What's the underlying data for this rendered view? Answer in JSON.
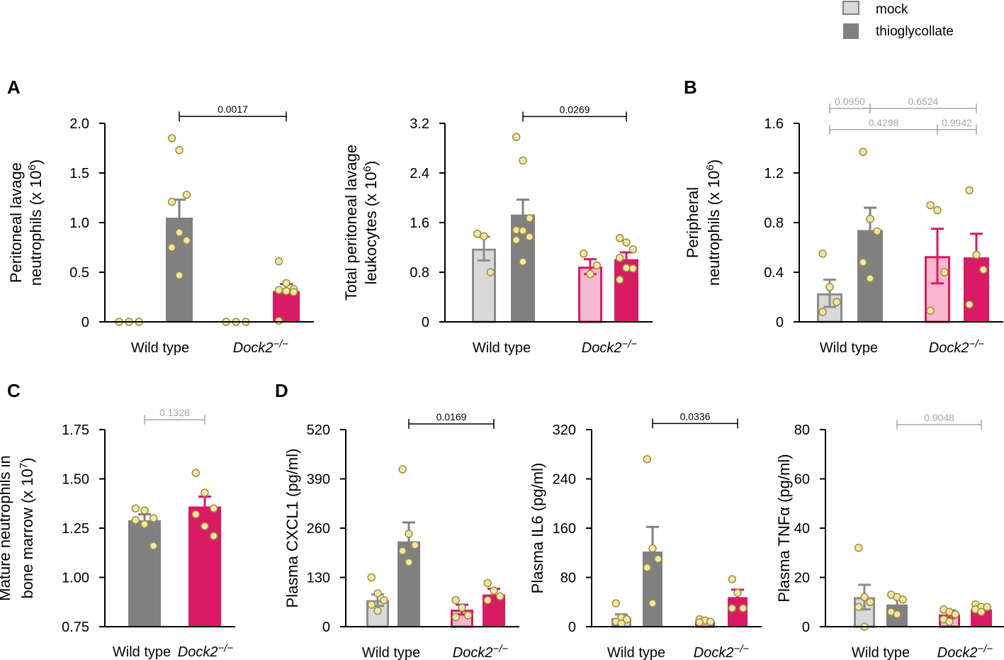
{
  "legend": {
    "mock_label": "mock",
    "thio_label": "thioglycollate"
  },
  "colors": {
    "wt_mock_fill": "#d9d9d9",
    "wt_mock_stroke": "#8c8c8c",
    "wt_thio": "#808080",
    "ko_mock_fill": "#f7b8d0",
    "ko_mock_stroke": "#d81b63",
    "ko_thio": "#d81b63",
    "dot_fill": "#efe7a6",
    "dot_stroke": "#a08c3a",
    "sig_line": "#000000",
    "nonsig_line": "#a6a6a6"
  },
  "chart_data": [
    {
      "id": "A1",
      "panel_letter": "A",
      "type": "bar",
      "ylabel": [
        "Peritoneal lavage",
        "neutrophils (x 10",
        "6",
        ")"
      ],
      "ylim": [
        0,
        2.0
      ],
      "yticks": [
        "0",
        "0.5",
        "1.0",
        "1.5",
        "2.0"
      ],
      "ytick_values": [
        0,
        0.5,
        1.0,
        1.5,
        2.0
      ],
      "groups": [
        {
          "label": "Wild type",
          "italic": false
        },
        {
          "label": "Dock2−/−",
          "italic": true
        }
      ],
      "bars": [
        {
          "series": "wt_mock",
          "group": 0,
          "value": 0,
          "sem": 0,
          "points": [
            0,
            0,
            0
          ]
        },
        {
          "series": "wt_thio",
          "group": 0,
          "value": 1.05,
          "sem": 0.18,
          "points": [
            1.85,
            1.73,
            1.28,
            1.21,
            0.9,
            0.82,
            0.75,
            0.47
          ]
        },
        {
          "series": "ko_mock",
          "group": 1,
          "value": 0,
          "sem": 0,
          "points": [
            0,
            0,
            0
          ]
        },
        {
          "series": "ko_thio",
          "group": 1,
          "value": 0.31,
          "sem": 0.07,
          "points": [
            0.61,
            0.39,
            0.33,
            0.32,
            0.31,
            0.3,
            0.01
          ]
        }
      ],
      "comparisons": [
        {
          "from": 1,
          "to": 3,
          "y": 2.07,
          "label": "0.0017",
          "significant": true
        }
      ]
    },
    {
      "id": "A2",
      "panel_letter": "",
      "type": "bar",
      "ylabel": [
        "Total peritoneal lavage",
        "leukocytes (x 10",
        "6",
        ")"
      ],
      "ylim": [
        0,
        3.2
      ],
      "yticks": [
        "0",
        "0.8",
        "1.6",
        "2.4",
        "3.2"
      ],
      "ytick_values": [
        0,
        0.8,
        1.6,
        2.4,
        3.2
      ],
      "groups": [
        {
          "label": "Wild type",
          "italic": false
        },
        {
          "label": "Dock2−/−",
          "italic": true
        }
      ],
      "bars": [
        {
          "series": "wt_mock",
          "group": 0,
          "value": 1.18,
          "sem": 0.19,
          "points": [
            1.42,
            1.38,
            0.8
          ]
        },
        {
          "series": "wt_thio",
          "group": 0,
          "value": 1.73,
          "sem": 0.24,
          "points": [
            2.98,
            2.6,
            1.67,
            1.48,
            1.47,
            1.37,
            1.32,
            0.97
          ]
        },
        {
          "series": "ko_mock",
          "group": 1,
          "value": 0.89,
          "sem": 0.12,
          "points": [
            1.1,
            0.77,
            0.91
          ]
        },
        {
          "series": "ko_thio",
          "group": 1,
          "value": 1.01,
          "sem": 0.11,
          "points": [
            1.35,
            1.28,
            1.17,
            1.03,
            0.87,
            0.86,
            0.68
          ]
        }
      ],
      "comparisons": [
        {
          "from": 1,
          "to": 3,
          "y": 3.31,
          "label": "0.0269",
          "significant": true
        }
      ]
    },
    {
      "id": "B",
      "panel_letter": "B",
      "type": "bar",
      "ylabel": [
        "Peripheral",
        "neutrophils (x 10",
        "6",
        ")"
      ],
      "ylim": [
        0,
        1.6
      ],
      "yticks": [
        "0",
        "0.4",
        "0.8",
        "1.2",
        "1.6"
      ],
      "ytick_values": [
        0,
        0.4,
        0.8,
        1.2,
        1.6
      ],
      "groups": [
        {
          "label": "Wild type",
          "italic": false
        },
        {
          "label": "Dock2−/−",
          "italic": true
        }
      ],
      "bars": [
        {
          "series": "wt_mock",
          "group": 0,
          "value": 0.23,
          "sem": 0.11,
          "points": [
            0.55,
            0.28,
            0.16,
            0.08
          ]
        },
        {
          "series": "wt_thio",
          "group": 0,
          "value": 0.74,
          "sem": 0.18,
          "points": [
            1.37,
            0.83,
            0.73,
            0.48,
            0.35
          ]
        },
        {
          "series": "ko_mock",
          "group": 1,
          "value": 0.53,
          "sem": 0.22,
          "points": [
            0.94,
            0.9,
            0.4,
            0.09
          ]
        },
        {
          "series": "ko_thio",
          "group": 1,
          "value": 0.52,
          "sem": 0.19,
          "points": [
            1.06,
            0.54,
            0.42,
            0.14
          ]
        }
      ],
      "comparisons": [
        {
          "from": 0,
          "to": 1,
          "y": 1.72,
          "label": "0.0950",
          "significant": false
        },
        {
          "from": 1,
          "to": 3,
          "y": 1.72,
          "label": "0.6524",
          "significant": false
        },
        {
          "from": 0,
          "to": 2,
          "y": 1.55,
          "label": "0.4298",
          "significant": false
        },
        {
          "from": 2,
          "to": 3,
          "y": 1.55,
          "label": "0.9942",
          "significant": false
        }
      ]
    },
    {
      "id": "C",
      "panel_letter": "C",
      "type": "bar",
      "ylabel": [
        "Mature neutrophils in",
        "bone marrow (x 10",
        "7",
        ")"
      ],
      "ylim": [
        0.75,
        1.75
      ],
      "yticks": [
        "0.75",
        "1.00",
        "1.25",
        "1.50",
        "1.75"
      ],
      "ytick_values": [
        0.75,
        1.0,
        1.25,
        1.5,
        1.75
      ],
      "bar_labels": [
        {
          "label": "Wild type",
          "italic": false
        },
        {
          "label": "Dock2−/−",
          "italic": true
        }
      ],
      "bars": [
        {
          "series": "wt_thio",
          "group": 0,
          "value": 1.29,
          "sem": 0.03,
          "points": [
            1.35,
            1.34,
            1.3,
            1.29,
            1.27,
            1.16
          ]
        },
        {
          "series": "ko_thio",
          "group": 1,
          "value": 1.36,
          "sem": 0.05,
          "points": [
            1.53,
            1.43,
            1.35,
            1.32,
            1.26,
            1.21
          ]
        }
      ],
      "comparisons": [
        {
          "from": 0,
          "to": 1,
          "y": 1.8,
          "label": "0.1328",
          "significant": false
        }
      ]
    },
    {
      "id": "D1",
      "panel_letter": "D",
      "type": "bar",
      "ylabel": [
        "Plasma CXCL1 (pg/ml)"
      ],
      "ylim": [
        0,
        520
      ],
      "yticks": [
        "0",
        "130",
        "260",
        "390",
        "520"
      ],
      "ytick_values": [
        0,
        130,
        260,
        390,
        520
      ],
      "groups": [
        {
          "label": "Wild type",
          "italic": false
        },
        {
          "label": "Dock2−/−",
          "italic": true
        }
      ],
      "bars": [
        {
          "series": "wt_mock",
          "group": 0,
          "value": 70,
          "sem": 15,
          "points": [
            130,
            88,
            70,
            58,
            42
          ]
        },
        {
          "series": "wt_thio",
          "group": 0,
          "value": 225,
          "sem": 50,
          "points": [
            415,
            245,
            215,
            200,
            170
          ]
        },
        {
          "series": "ko_mock",
          "group": 1,
          "value": 45,
          "sem": 13,
          "points": [
            70,
            50,
            30,
            25
          ]
        },
        {
          "series": "ko_thio",
          "group": 1,
          "value": 85,
          "sem": 15,
          "points": [
            115,
            95,
            80,
            70
          ]
        }
      ],
      "comparisons": [
        {
          "from": 1,
          "to": 3,
          "y": 535,
          "label": "0.0169",
          "significant": true
        }
      ]
    },
    {
      "id": "D2",
      "panel_letter": "",
      "type": "bar",
      "ylabel": [
        "Plasma IL6 (pg/ml)"
      ],
      "ylim": [
        0,
        320
      ],
      "yticks": [
        "0",
        "80",
        "160",
        "240",
        "320"
      ],
      "ytick_values": [
        0,
        80,
        160,
        240,
        320
      ],
      "groups": [
        {
          "label": "Wild type",
          "italic": false
        },
        {
          "label": "Dock2−/−",
          "italic": true
        }
      ],
      "bars": [
        {
          "series": "wt_mock",
          "group": 0,
          "value": 14,
          "sem": 6,
          "points": [
            38,
            15,
            12,
            8,
            5
          ]
        },
        {
          "series": "wt_thio",
          "group": 0,
          "value": 122,
          "sem": 40,
          "points": [
            272,
            127,
            110,
            96,
            38
          ]
        },
        {
          "series": "ko_mock",
          "group": 1,
          "value": 9,
          "sem": 2,
          "points": [
            12,
            10,
            8,
            7
          ]
        },
        {
          "series": "ko_thio",
          "group": 1,
          "value": 48,
          "sem": 12,
          "points": [
            77,
            55,
            30,
            30
          ]
        }
      ],
      "comparisons": [
        {
          "from": 1,
          "to": 3,
          "y": 330,
          "label": "0.0336",
          "significant": true
        }
      ]
    },
    {
      "id": "D3",
      "panel_letter": "",
      "type": "bar",
      "ylabel": [
        "Plasma TNFα (pg/ml)"
      ],
      "ylim": [
        0,
        80
      ],
      "yticks": [
        "0",
        "20",
        "40",
        "60",
        "80"
      ],
      "ytick_values": [
        0,
        20,
        40,
        60,
        80
      ],
      "groups": [
        {
          "label": "Wild type",
          "italic": false
        },
        {
          "label": "Dock2−/−",
          "italic": true
        }
      ],
      "bars": [
        {
          "series": "wt_mock",
          "group": 0,
          "value": 12,
          "sem": 5,
          "points": [
            32,
            12,
            10,
            8,
            0
          ]
        },
        {
          "series": "wt_thio",
          "group": 0,
          "value": 9,
          "sem": 3,
          "points": [
            13,
            12,
            11,
            6,
            5
          ]
        },
        {
          "series": "ko_mock",
          "group": 1,
          "value": 5,
          "sem": 1.5,
          "points": [
            7,
            6,
            5,
            3,
            2
          ]
        },
        {
          "series": "ko_thio",
          "group": 1,
          "value": 7,
          "sem": 1,
          "points": [
            9,
            8,
            8,
            7,
            6
          ]
        }
      ],
      "comparisons": [
        {
          "from": 1,
          "to": 3,
          "y": 82,
          "label": "0.9048",
          "significant": false
        }
      ]
    }
  ]
}
